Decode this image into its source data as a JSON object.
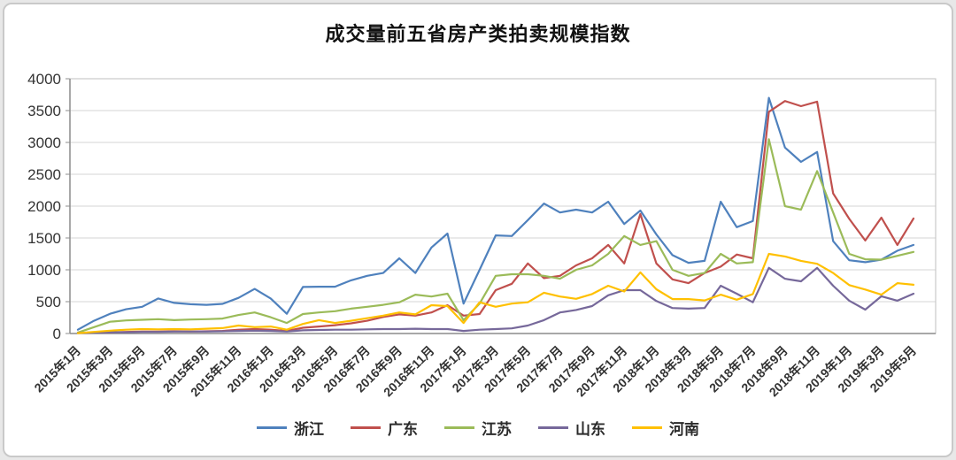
{
  "title": "成交量前五省房产类拍卖规模指数",
  "palette": {
    "grid_color": "#d6d6d6",
    "axis_color": "#8c8c8c",
    "frame_color": "#bfbfbf",
    "tick_text_color": "#333333",
    "card_border_color": "#c9c9c9",
    "background": "#ffffff"
  },
  "chart_data": {
    "type": "line",
    "title": "成交量前五省房产类拍卖规模指数",
    "xlabel": "",
    "ylabel": "",
    "ylim": [
      0,
      4000
    ],
    "yticks": [
      0,
      500,
      1000,
      1500,
      2000,
      2500,
      3000,
      3500,
      4000
    ],
    "grid": "horizontal",
    "legend_position": "bottom",
    "x_label_every": 2,
    "x_label_rotation": -45,
    "categories": [
      "2015年1月",
      "2015年2月",
      "2015年3月",
      "2015年4月",
      "2015年5月",
      "2015年6月",
      "2015年7月",
      "2015年8月",
      "2015年9月",
      "2015年10月",
      "2015年11月",
      "2015年12月",
      "2016年1月",
      "2016年2月",
      "2016年3月",
      "2016年4月",
      "2016年5月",
      "2016年6月",
      "2016年7月",
      "2016年8月",
      "2016年9月",
      "2016年10月",
      "2016年11月",
      "2016年12月",
      "2017年1月",
      "2017年2月",
      "2017年3月",
      "2017年4月",
      "2017年5月",
      "2017年6月",
      "2017年7月",
      "2017年8月",
      "2017年9月",
      "2017年10月",
      "2017年11月",
      "2017年12月",
      "2018年1月",
      "2018年2月",
      "2018年3月",
      "2018年4月",
      "2018年5月",
      "2018年6月",
      "2018年7月",
      "2018年8月",
      "2018年9月",
      "2018年10月",
      "2018年11月",
      "2018年12月",
      "2019年1月",
      "2019年2月",
      "2019年3月",
      "2019年4月",
      "2019年5月"
    ],
    "series": [
      {
        "name": "浙江",
        "color": "#4F81BD",
        "values": [
          60,
          200,
          310,
          380,
          420,
          550,
          480,
          460,
          450,
          465,
          560,
          700,
          550,
          310,
          730,
          735,
          735,
          835,
          905,
          950,
          1180,
          950,
          1350,
          1570,
          470,
          1000,
          1540,
          1530,
          1780,
          2040,
          1900,
          1945,
          1900,
          2070,
          1720,
          1930,
          1555,
          1230,
          1110,
          1140,
          2070,
          1670,
          1765,
          3700,
          2920,
          2695,
          2850,
          1450,
          1150,
          1120,
          1160,
          1300,
          1390
        ]
      },
      {
        "name": "广东",
        "color": "#C0504D",
        "values": [
          10,
          15,
          20,
          25,
          30,
          30,
          35,
          30,
          35,
          40,
          60,
          70,
          60,
          40,
          90,
          110,
          130,
          160,
          200,
          260,
          300,
          280,
          330,
          445,
          280,
          305,
          680,
          780,
          1100,
          870,
          905,
          1070,
          1180,
          1390,
          1100,
          1875,
          1100,
          850,
          790,
          950,
          1050,
          1240,
          1180,
          3480,
          3650,
          3570,
          3640,
          2200,
          1800,
          1460,
          1820,
          1390,
          1805
        ]
      },
      {
        "name": "江苏",
        "color": "#9BBB59",
        "values": [
          15,
          100,
          185,
          205,
          215,
          225,
          210,
          220,
          225,
          235,
          290,
          330,
          255,
          165,
          305,
          330,
          350,
          390,
          420,
          450,
          490,
          610,
          580,
          625,
          210,
          470,
          905,
          930,
          930,
          905,
          860,
          1000,
          1070,
          1250,
          1530,
          1390,
          1450,
          1000,
          905,
          950,
          1250,
          1100,
          1120,
          3050,
          2000,
          1945,
          2550,
          1900,
          1250,
          1165,
          1160,
          1220,
          1280
        ]
      },
      {
        "name": "山东",
        "color": "#76689A",
        "values": [
          10,
          15,
          20,
          20,
          25,
          25,
          30,
          30,
          30,
          35,
          40,
          45,
          40,
          30,
          50,
          55,
          60,
          60,
          65,
          70,
          70,
          75,
          70,
          70,
          40,
          60,
          70,
          80,
          125,
          210,
          330,
          370,
          430,
          600,
          680,
          680,
          510,
          400,
          390,
          400,
          750,
          625,
          490,
          1030,
          860,
          820,
          1030,
          750,
          515,
          375,
          585,
          515,
          625
        ]
      },
      {
        "name": "河南",
        "color": "#FFC000",
        "values": [
          5,
          25,
          45,
          60,
          70,
          65,
          70,
          65,
          75,
          85,
          125,
          100,
          110,
          60,
          150,
          210,
          165,
          200,
          240,
          280,
          330,
          300,
          445,
          430,
          165,
          490,
          420,
          470,
          490,
          640,
          580,
          545,
          620,
          750,
          660,
          960,
          695,
          540,
          540,
          520,
          610,
          530,
          620,
          1250,
          1210,
          1140,
          1095,
          950,
          760,
          690,
          610,
          790,
          765
        ]
      }
    ]
  }
}
